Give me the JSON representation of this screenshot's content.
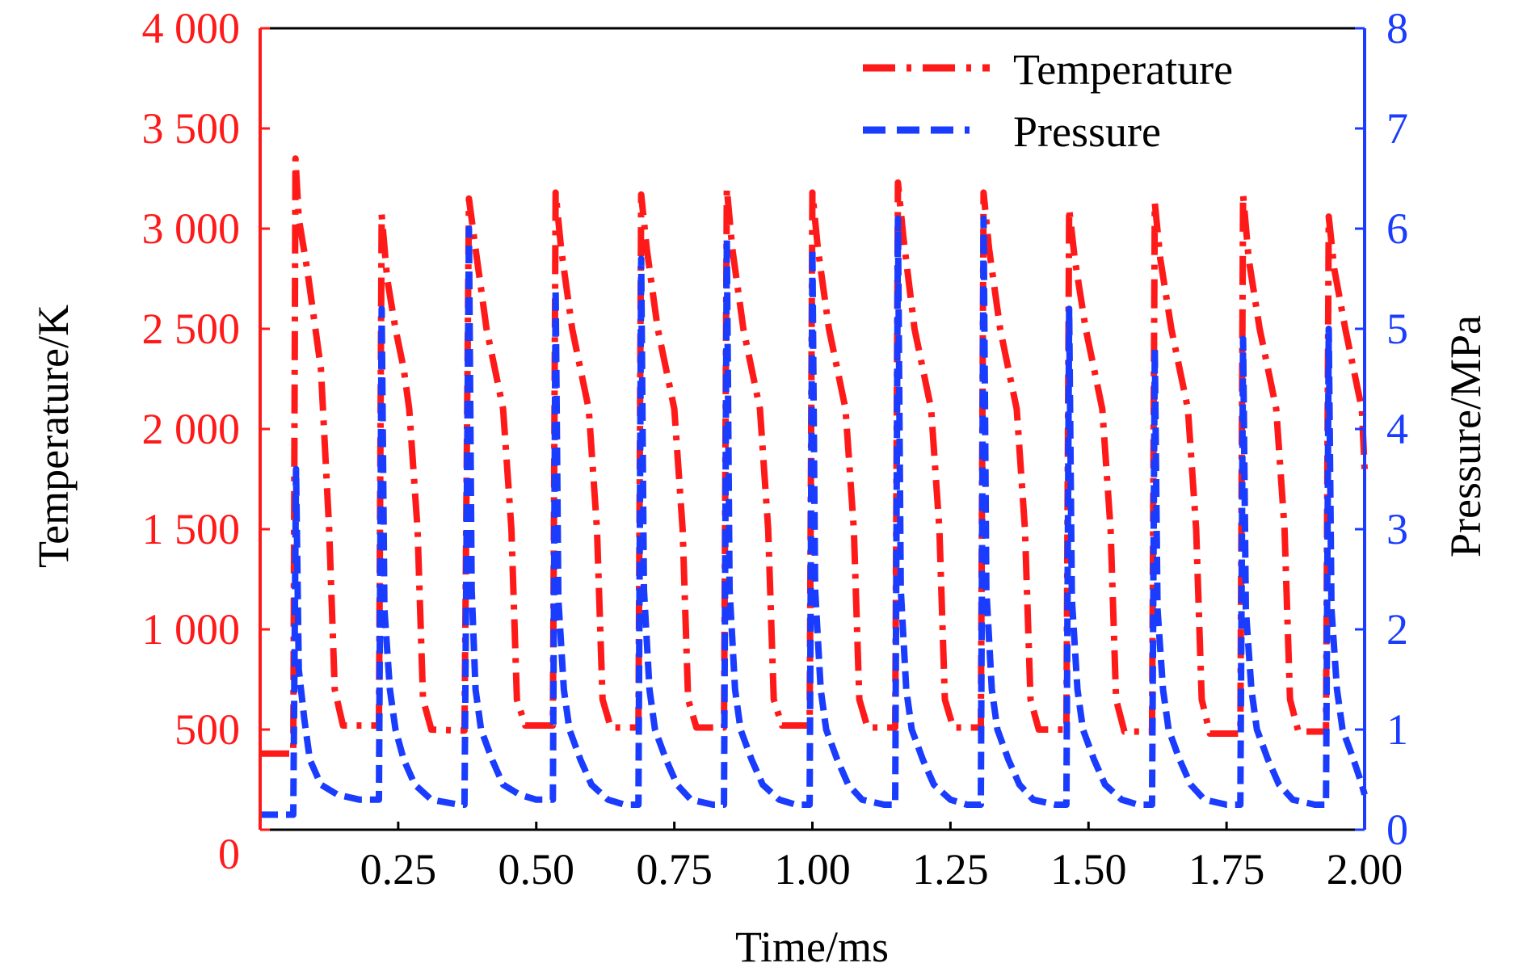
{
  "chart_data": {
    "type": "line",
    "xlabel": "Time/ms",
    "ylabel_left": "Temperature/K",
    "ylabel_right": "Pressure/MPa",
    "xlim": [
      0,
      2.0
    ],
    "ylim_left": [
      0,
      4000
    ],
    "ylim_right": [
      0,
      8
    ],
    "x_ticks": [
      0.25,
      0.5,
      0.75,
      1.0,
      1.25,
      1.5,
      1.75,
      2.0
    ],
    "x_tick_labels": [
      "0.25",
      "0.50",
      "0.75",
      "1.00",
      "1.25",
      "1.50",
      "1.75",
      "2.00"
    ],
    "y_left_ticks": [
      0,
      500,
      1000,
      1500,
      2000,
      2500,
      3000,
      3500,
      4000
    ],
    "y_left_tick_labels": [
      "0",
      "500",
      "1 000",
      "1 500",
      "2 000",
      "2 500",
      "3 000",
      "3 500",
      "4 000"
    ],
    "y_right_ticks": [
      0,
      1,
      2,
      3,
      4,
      5,
      6,
      7,
      8
    ],
    "y_right_tick_labels": [
      "0",
      "1",
      "2",
      "3",
      "4",
      "5",
      "6",
      "7",
      "8"
    ],
    "grid": false,
    "legend_position": "top-right",
    "colors": {
      "temperature": "#ff1a1a",
      "pressure": "#1a3cff",
      "left_axis": "#ff1a1a",
      "right_axis": "#1a3cff"
    },
    "series": [
      {
        "name": "Temperature",
        "axis": "left",
        "style": "dash-dot",
        "points": [
          [
            0.0,
            380
          ],
          [
            0.06,
            380
          ],
          [
            0.064,
            3350
          ],
          [
            0.07,
            3050
          ],
          [
            0.085,
            2800
          ],
          [
            0.1,
            2500
          ],
          [
            0.11,
            2300
          ],
          [
            0.125,
            1500
          ],
          [
            0.135,
            700
          ],
          [
            0.15,
            520
          ],
          [
            0.2,
            520
          ],
          [
            0.215,
            520
          ],
          [
            0.22,
            3070
          ],
          [
            0.23,
            2750
          ],
          [
            0.245,
            2500
          ],
          [
            0.26,
            2300
          ],
          [
            0.27,
            2100
          ],
          [
            0.285,
            1500
          ],
          [
            0.295,
            650
          ],
          [
            0.31,
            500
          ],
          [
            0.36,
            495
          ],
          [
            0.37,
            495
          ],
          [
            0.378,
            3150
          ],
          [
            0.39,
            2900
          ],
          [
            0.41,
            2500
          ],
          [
            0.425,
            2300
          ],
          [
            0.44,
            2100
          ],
          [
            0.455,
            1500
          ],
          [
            0.465,
            650
          ],
          [
            0.48,
            520
          ],
          [
            0.52,
            520
          ],
          [
            0.53,
            520
          ],
          [
            0.535,
            3180
          ],
          [
            0.545,
            2900
          ],
          [
            0.565,
            2500
          ],
          [
            0.58,
            2300
          ],
          [
            0.595,
            2100
          ],
          [
            0.61,
            1500
          ],
          [
            0.62,
            650
          ],
          [
            0.635,
            510
          ],
          [
            0.67,
            510
          ],
          [
            0.685,
            510
          ],
          [
            0.69,
            3170
          ],
          [
            0.7,
            2900
          ],
          [
            0.72,
            2500
          ],
          [
            0.735,
            2300
          ],
          [
            0.75,
            2100
          ],
          [
            0.765,
            1500
          ],
          [
            0.775,
            650
          ],
          [
            0.79,
            510
          ],
          [
            0.83,
            510
          ],
          [
            0.84,
            510
          ],
          [
            0.845,
            3200
          ],
          [
            0.855,
            2900
          ],
          [
            0.875,
            2500
          ],
          [
            0.89,
            2300
          ],
          [
            0.905,
            2100
          ],
          [
            0.92,
            1500
          ],
          [
            0.93,
            650
          ],
          [
            0.945,
            520
          ],
          [
            0.99,
            520
          ],
          [
            0.995,
            520
          ],
          [
            1.0,
            3180
          ],
          [
            1.01,
            2900
          ],
          [
            1.03,
            2500
          ],
          [
            1.045,
            2300
          ],
          [
            1.06,
            2100
          ],
          [
            1.075,
            1500
          ],
          [
            1.085,
            650
          ],
          [
            1.1,
            510
          ],
          [
            1.145,
            510
          ],
          [
            1.15,
            510
          ],
          [
            1.155,
            3230
          ],
          [
            1.165,
            2950
          ],
          [
            1.185,
            2500
          ],
          [
            1.2,
            2300
          ],
          [
            1.215,
            2100
          ],
          [
            1.23,
            1500
          ],
          [
            1.24,
            650
          ],
          [
            1.255,
            510
          ],
          [
            1.3,
            510
          ],
          [
            1.305,
            510
          ],
          [
            1.31,
            3180
          ],
          [
            1.32,
            2900
          ],
          [
            1.34,
            2500
          ],
          [
            1.355,
            2300
          ],
          [
            1.37,
            2100
          ],
          [
            1.385,
            1500
          ],
          [
            1.395,
            650
          ],
          [
            1.41,
            500
          ],
          [
            1.455,
            500
          ],
          [
            1.46,
            500
          ],
          [
            1.465,
            3100
          ],
          [
            1.475,
            2850
          ],
          [
            1.495,
            2500
          ],
          [
            1.51,
            2300
          ],
          [
            1.525,
            2100
          ],
          [
            1.54,
            1500
          ],
          [
            1.55,
            650
          ],
          [
            1.565,
            490
          ],
          [
            1.61,
            490
          ],
          [
            1.615,
            490
          ],
          [
            1.62,
            3130
          ],
          [
            1.63,
            2850
          ],
          [
            1.65,
            2500
          ],
          [
            1.665,
            2300
          ],
          [
            1.68,
            2100
          ],
          [
            1.695,
            1500
          ],
          [
            1.705,
            650
          ],
          [
            1.72,
            480
          ],
          [
            1.77,
            480
          ],
          [
            1.775,
            480
          ],
          [
            1.78,
            3170
          ],
          [
            1.79,
            2850
          ],
          [
            1.81,
            2500
          ],
          [
            1.825,
            2300
          ],
          [
            1.84,
            2100
          ],
          [
            1.855,
            1500
          ],
          [
            1.865,
            650
          ],
          [
            1.88,
            490
          ],
          [
            1.925,
            490
          ],
          [
            1.93,
            490
          ],
          [
            1.935,
            3060
          ],
          [
            1.945,
            2800
          ],
          [
            1.965,
            2500
          ],
          [
            1.98,
            2300
          ],
          [
            1.995,
            2100
          ],
          [
            2.0,
            1800
          ]
        ]
      },
      {
        "name": "Pressure",
        "axis": "right",
        "style": "dashed",
        "points": [
          [
            0.0,
            0.15
          ],
          [
            0.06,
            0.15
          ],
          [
            0.065,
            3.6
          ],
          [
            0.07,
            1.6
          ],
          [
            0.08,
            1.1
          ],
          [
            0.09,
            0.7
          ],
          [
            0.11,
            0.45
          ],
          [
            0.14,
            0.35
          ],
          [
            0.18,
            0.3
          ],
          [
            0.215,
            0.3
          ],
          [
            0.22,
            5.2
          ],
          [
            0.225,
            2.2
          ],
          [
            0.235,
            1.4
          ],
          [
            0.245,
            1.0
          ],
          [
            0.26,
            0.7
          ],
          [
            0.28,
            0.45
          ],
          [
            0.31,
            0.3
          ],
          [
            0.36,
            0.25
          ],
          [
            0.37,
            0.25
          ],
          [
            0.378,
            6.0
          ],
          [
            0.383,
            2.4
          ],
          [
            0.39,
            1.4
          ],
          [
            0.4,
            1.0
          ],
          [
            0.42,
            0.7
          ],
          [
            0.44,
            0.45
          ],
          [
            0.47,
            0.35
          ],
          [
            0.5,
            0.3
          ],
          [
            0.53,
            0.3
          ],
          [
            0.535,
            5.4
          ],
          [
            0.54,
            2.3
          ],
          [
            0.55,
            1.4
          ],
          [
            0.56,
            1.0
          ],
          [
            0.58,
            0.7
          ],
          [
            0.6,
            0.45
          ],
          [
            0.63,
            0.3
          ],
          [
            0.66,
            0.25
          ],
          [
            0.685,
            0.25
          ],
          [
            0.69,
            5.7
          ],
          [
            0.695,
            2.4
          ],
          [
            0.705,
            1.4
          ],
          [
            0.715,
            1.0
          ],
          [
            0.735,
            0.7
          ],
          [
            0.755,
            0.45
          ],
          [
            0.78,
            0.3
          ],
          [
            0.82,
            0.25
          ],
          [
            0.84,
            0.25
          ],
          [
            0.845,
            5.9
          ],
          [
            0.85,
            2.4
          ],
          [
            0.86,
            1.4
          ],
          [
            0.87,
            1.0
          ],
          [
            0.89,
            0.7
          ],
          [
            0.91,
            0.45
          ],
          [
            0.94,
            0.3
          ],
          [
            0.97,
            0.25
          ],
          [
            0.995,
            0.25
          ],
          [
            1.0,
            5.8
          ],
          [
            1.005,
            2.4
          ],
          [
            1.015,
            1.4
          ],
          [
            1.025,
            1.0
          ],
          [
            1.045,
            0.7
          ],
          [
            1.065,
            0.45
          ],
          [
            1.09,
            0.3
          ],
          [
            1.13,
            0.25
          ],
          [
            1.15,
            0.25
          ],
          [
            1.155,
            6.1
          ],
          [
            1.16,
            2.4
          ],
          [
            1.17,
            1.4
          ],
          [
            1.18,
            1.0
          ],
          [
            1.2,
            0.7
          ],
          [
            1.22,
            0.45
          ],
          [
            1.25,
            0.3
          ],
          [
            1.28,
            0.25
          ],
          [
            1.305,
            0.25
          ],
          [
            1.31,
            6.1
          ],
          [
            1.315,
            2.4
          ],
          [
            1.325,
            1.4
          ],
          [
            1.335,
            1.0
          ],
          [
            1.355,
            0.7
          ],
          [
            1.375,
            0.45
          ],
          [
            1.4,
            0.3
          ],
          [
            1.44,
            0.25
          ],
          [
            1.46,
            0.25
          ],
          [
            1.465,
            5.2
          ],
          [
            1.47,
            2.3
          ],
          [
            1.48,
            1.4
          ],
          [
            1.49,
            1.0
          ],
          [
            1.51,
            0.7
          ],
          [
            1.53,
            0.45
          ],
          [
            1.56,
            0.3
          ],
          [
            1.59,
            0.25
          ],
          [
            1.615,
            0.25
          ],
          [
            1.62,
            4.8
          ],
          [
            1.625,
            2.2
          ],
          [
            1.635,
            1.4
          ],
          [
            1.645,
            1.0
          ],
          [
            1.665,
            0.7
          ],
          [
            1.685,
            0.45
          ],
          [
            1.71,
            0.3
          ],
          [
            1.75,
            0.25
          ],
          [
            1.775,
            0.25
          ],
          [
            1.78,
            4.9
          ],
          [
            1.785,
            2.2
          ],
          [
            1.795,
            1.4
          ],
          [
            1.805,
            1.0
          ],
          [
            1.825,
            0.7
          ],
          [
            1.845,
            0.45
          ],
          [
            1.87,
            0.3
          ],
          [
            1.91,
            0.25
          ],
          [
            1.93,
            0.25
          ],
          [
            1.935,
            5.0
          ],
          [
            1.94,
            2.2
          ],
          [
            1.95,
            1.4
          ],
          [
            1.96,
            1.0
          ],
          [
            1.98,
            0.7
          ],
          [
            1.995,
            0.45
          ],
          [
            2.0,
            0.35
          ]
        ]
      }
    ]
  }
}
